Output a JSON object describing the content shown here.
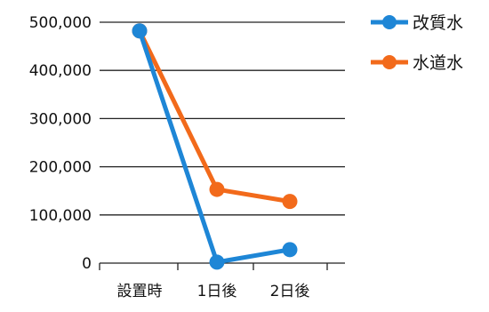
{
  "chart_data": {
    "type": "line",
    "title": "",
    "xlabel": "",
    "ylabel": "",
    "categories": [
      "設置時",
      "1日後",
      "2日後"
    ],
    "ylim": [
      0,
      500000
    ],
    "y_ticks": [
      0,
      100000,
      200000,
      300000,
      400000,
      500000
    ],
    "y_tick_labels": [
      "0",
      "100,000",
      "200,000",
      "300,000",
      "400,000",
      "500,000"
    ],
    "grid": true,
    "legend_position": "top-right",
    "series": [
      {
        "name": "改質水",
        "color": "#1e86d6",
        "values": [
          482000,
          2000,
          28000
        ]
      },
      {
        "name": "水道水",
        "color": "#f26a1b",
        "values": [
          482000,
          153000,
          128000
        ]
      }
    ]
  }
}
